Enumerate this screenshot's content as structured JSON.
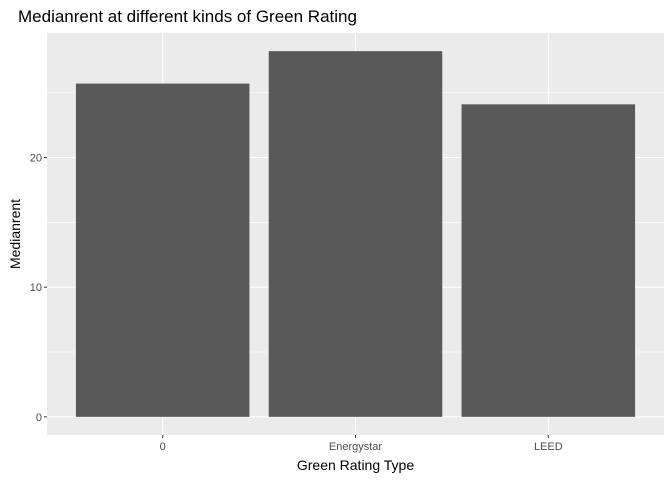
{
  "chart_data": {
    "type": "bar",
    "title": "Medianrent at different kinds of Green Rating",
    "xlabel": "Green Rating Type",
    "ylabel": "Medianrent",
    "categories": [
      "0",
      "Energystar",
      "LEED"
    ],
    "values": [
      25.7,
      28.2,
      24.1
    ],
    "ylim": [
      -1.4,
      29.6
    ],
    "yticks": [
      0,
      10,
      20
    ],
    "ytick_labels": [
      "0",
      "10",
      "20"
    ],
    "grid": true,
    "bar_color": "#595959",
    "panel_color": "#ebebeb",
    "grid_color": "#ffffff",
    "legend": "none"
  }
}
